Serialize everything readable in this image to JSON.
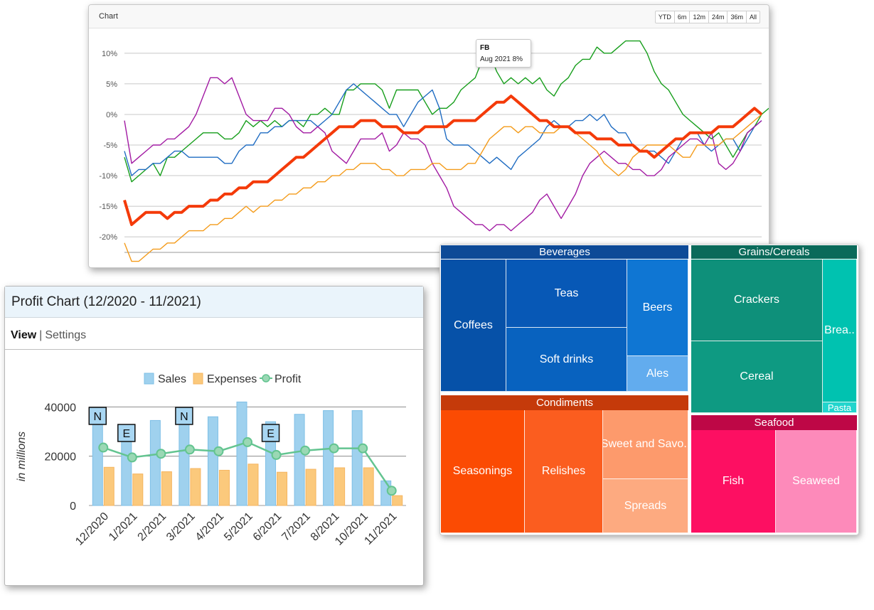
{
  "stock_chart": {
    "title": "Chart",
    "range_buttons": [
      "YTD",
      "6m",
      "12m",
      "24m",
      "36m",
      "All"
    ],
    "tooltip": {
      "symbol": "FB",
      "value": "Aug 2021 8%"
    },
    "colors": {
      "purple": "#a21aa3",
      "blue": "#1f6cc2",
      "green": "#169e1b",
      "orange": "#f49b1a",
      "red": "#f43a09"
    }
  },
  "profit_chart": {
    "title": "Profit Chart (12/2020 - 11/2021)",
    "tabs": {
      "view": "View",
      "separator": "|",
      "settings": "Settings"
    },
    "colors": {
      "sales": "#9fd1ee",
      "expenses": "#fbc97c",
      "profit": "#63c490"
    }
  },
  "treemap": {
    "groups": [
      {
        "name": "Beverages",
        "color": "#0d4a97"
      },
      {
        "name": "Grains/Cereals",
        "color": "#0a6a5a"
      },
      {
        "name": "Condiments",
        "color": "#c53a0a"
      },
      {
        "name": "Seafood",
        "color": "#be0746"
      }
    ],
    "items": [
      {
        "name": "Coffees",
        "group": "Beverages",
        "color": "#0651a8"
      },
      {
        "name": "Teas",
        "group": "Beverages",
        "color": "#0758b6"
      },
      {
        "name": "Soft drinks",
        "group": "Beverages",
        "color": "#0862bf"
      },
      {
        "name": "Beers",
        "group": "Beverages",
        "color": "#0f76d3"
      },
      {
        "name": "Ales",
        "group": "Beverages",
        "color": "#62acee"
      },
      {
        "name": "Crackers",
        "group": "Grains/Cereals",
        "color": "#0e907a"
      },
      {
        "name": "Cereal",
        "group": "Grains/Cereals",
        "color": "#0e9a82"
      },
      {
        "name": "Brea..",
        "group": "Grains/Cereals",
        "color": "#00c2b0"
      },
      {
        "name": "Pasta",
        "group": "Grains/Cereals",
        "color": "#22d5cd"
      },
      {
        "name": "Seasonings",
        "group": "Condiments",
        "color": "#fb4b03"
      },
      {
        "name": "Relishes",
        "group": "Condiments",
        "color": "#fb5d1f"
      },
      {
        "name": "Sweet and Savo..",
        "group": "Condiments",
        "color": "#fd9a6c"
      },
      {
        "name": "Spreads",
        "group": "Condiments",
        "color": "#fdaa80"
      },
      {
        "name": "Fish",
        "group": "Seafood",
        "color": "#fd0f62"
      },
      {
        "name": "Seaweed",
        "group": "Seafood",
        "color": "#fd8aba"
      }
    ]
  },
  "chart_data": [
    {
      "type": "line",
      "title": "Chart",
      "ylim": [
        -23,
        13
      ],
      "ytick_labels": [
        "10%",
        "5%",
        "0%",
        "-5%",
        "-10%",
        "-15%",
        "-20%"
      ],
      "ytick_values": [
        10,
        5,
        0,
        -5,
        -10,
        -15,
        -20
      ],
      "x_points": 90,
      "grid": true,
      "series": [
        {
          "name": "FB",
          "color": "#169e1b",
          "width": 1.4,
          "values": [
            -7,
            -11,
            -10,
            -9,
            -8,
            -10,
            -7,
            -7,
            -6,
            -5,
            -4,
            -3,
            -3,
            -3,
            -4,
            -4,
            -3,
            -1,
            -2,
            -1,
            -2,
            -1,
            -2,
            -1,
            -1,
            -2,
            0,
            0,
            1,
            0,
            0,
            4,
            4,
            5,
            5,
            5,
            4,
            1,
            4,
            4,
            4,
            4,
            2,
            0,
            1,
            1,
            2,
            4,
            5,
            6,
            9,
            10,
            7,
            5,
            6,
            5,
            6,
            5,
            6,
            4,
            3,
            5,
            6,
            8,
            9,
            9,
            11,
            10,
            10,
            11,
            12,
            12,
            12,
            10,
            7,
            5,
            4,
            2,
            0,
            -1,
            -2,
            -3,
            -4,
            -3,
            -5,
            -7,
            -5,
            -3,
            -2,
            0,
            1
          ]
        },
        {
          "name": "",
          "color": "#1f6cc2",
          "width": 1.4,
          "values": [
            -6,
            -10,
            -9,
            -9,
            -8,
            -8,
            -7,
            -6,
            -6,
            -7,
            -7,
            -7,
            -7,
            -7,
            -8,
            -8,
            -6,
            -5,
            -5,
            -3,
            -3,
            -2,
            -2,
            -1,
            -1,
            -1,
            -1,
            -2,
            -1,
            0,
            2,
            4,
            5,
            4,
            3,
            2,
            1,
            0,
            0,
            -2,
            0,
            2,
            3,
            4,
            1,
            -4,
            -5,
            -5,
            -5,
            -6,
            -7,
            -8,
            -7,
            -8,
            -9,
            -7,
            -6,
            -5,
            -4,
            -2,
            -1,
            -2,
            -2,
            -1,
            -1,
            0,
            -1,
            0,
            -2,
            -3,
            -3,
            -5,
            -6,
            -6,
            -6,
            -7,
            -8,
            -6,
            -4,
            -3,
            -3,
            -5,
            -6,
            -5,
            -4,
            -4,
            -6,
            -4,
            -2,
            -1
          ]
        },
        {
          "name": "",
          "color": "#a21aa3",
          "width": 1.4,
          "values": [
            -1,
            -8,
            -7,
            -6,
            -5,
            -5,
            -4,
            -4,
            -3,
            -2,
            0,
            3,
            6,
            6,
            5,
            6,
            3,
            0,
            -1,
            -1,
            -1,
            1,
            1,
            0,
            -2,
            -3,
            -3,
            -2,
            -3,
            -6,
            -7,
            -8,
            -6,
            -4,
            -4,
            -4,
            -3,
            -6,
            -5,
            -3,
            -4,
            -4,
            -5,
            -8,
            -10,
            -12,
            -15,
            -16,
            -17,
            -18,
            -18,
            -19,
            -18,
            -18,
            -19,
            -18,
            -17,
            -16,
            -14,
            -13,
            -15,
            -17,
            -15,
            -13,
            -10,
            -8,
            -7,
            -6,
            -7,
            -8,
            -8,
            -9,
            -9,
            -10,
            -10,
            -9,
            -7,
            -6,
            -5,
            -4,
            -4,
            -5,
            -3,
            -8,
            -9,
            -8,
            -6,
            -3,
            -2,
            -1
          ]
        },
        {
          "name": "",
          "color": "#f49b1a",
          "width": 1.4,
          "values": [
            -21,
            -24,
            -24,
            -23,
            -22,
            -22,
            -21,
            -21,
            -20,
            -19,
            -19,
            -19,
            -18,
            -18,
            -17,
            -17,
            -16,
            -15,
            -16,
            -15,
            -15,
            -14,
            -14,
            -13,
            -13,
            -12,
            -12,
            -11,
            -11,
            -10,
            -10,
            -9,
            -9,
            -8,
            -8,
            -8,
            -9,
            -9,
            -10,
            -10,
            -9,
            -9,
            -9,
            -8,
            -8,
            -9,
            -9,
            -9,
            -8,
            -8,
            -6,
            -4,
            -3,
            -2,
            -2,
            -3,
            -2,
            -2,
            -3,
            -3,
            -3,
            -2,
            -2,
            -3,
            -4,
            -5,
            -6,
            -8,
            -9,
            -10,
            -9,
            -7,
            -6,
            -5,
            -5,
            -5,
            -5,
            -6,
            -7,
            -7,
            -5,
            -5,
            -5,
            -5,
            -4,
            -4,
            -3,
            -2,
            -1,
            0
          ]
        },
        {
          "name": "",
          "color": "#f43a09",
          "width": 4,
          "values": [
            -14,
            -18,
            -17,
            -16,
            -16,
            -16,
            -17,
            -16,
            -16,
            -15,
            -15,
            -15,
            -14,
            -14,
            -13,
            -13,
            -12,
            -12,
            -11,
            -11,
            -11,
            -10,
            -9,
            -8,
            -7,
            -7,
            -6,
            -5,
            -4,
            -3,
            -2,
            -2,
            -2,
            -1,
            -1,
            -1,
            -2,
            -2,
            -2,
            -3,
            -3,
            -3,
            -2,
            -2,
            -2,
            -2,
            -1,
            -1,
            -1,
            -1,
            0,
            1,
            2,
            2,
            3,
            2,
            1,
            0,
            -1,
            -1,
            -2,
            -2,
            -2,
            -3,
            -3,
            -3,
            -4,
            -4,
            -4,
            -5,
            -5,
            -5,
            -6,
            -6,
            -7,
            -6,
            -5,
            -4,
            -4,
            -3,
            -3,
            -3,
            -3,
            -2,
            -2,
            -2,
            -1,
            0,
            1,
            0
          ]
        }
      ]
    },
    {
      "type": "bar",
      "categories": [
        "12/2020",
        "1/2021",
        "2/2021",
        "3/2021",
        "4/2021",
        "5/2021",
        "6/2021",
        "7/2021",
        "8/2021",
        "10/2021",
        "11/2021"
      ],
      "series": [
        {
          "name": "Sales",
          "values": [
            35000,
            28000,
            34500,
            37500,
            36000,
            42000,
            34000,
            37000,
            38500,
            38500,
            10000
          ]
        },
        {
          "name": "Expenses",
          "values": [
            15500,
            12800,
            13700,
            15000,
            14300,
            16800,
            13500,
            14700,
            15300,
            15300,
            4000
          ]
        },
        {
          "name": "Profit",
          "values": [
            23500,
            19500,
            21000,
            22700,
            22000,
            25700,
            20500,
            22300,
            23200,
            23200,
            6000
          ]
        }
      ],
      "annotations": [
        {
          "category": "12/2020",
          "label": "N"
        },
        {
          "category": "1/2021",
          "label": "E"
        },
        {
          "category": "3/2021",
          "label": "N"
        },
        {
          "category": "6/2021",
          "label": "E"
        }
      ],
      "ylabel": "in millions",
      "ylim": [
        0,
        45000
      ],
      "ytick_values": [
        0,
        20000,
        40000
      ],
      "ytick_labels": [
        "0",
        "20000",
        "40000"
      ],
      "legend_position": "top"
    },
    {
      "type": "treemap",
      "categories": [
        "Beverages",
        "Grains/Cereals",
        "Condiments",
        "Seafood"
      ]
    }
  ]
}
